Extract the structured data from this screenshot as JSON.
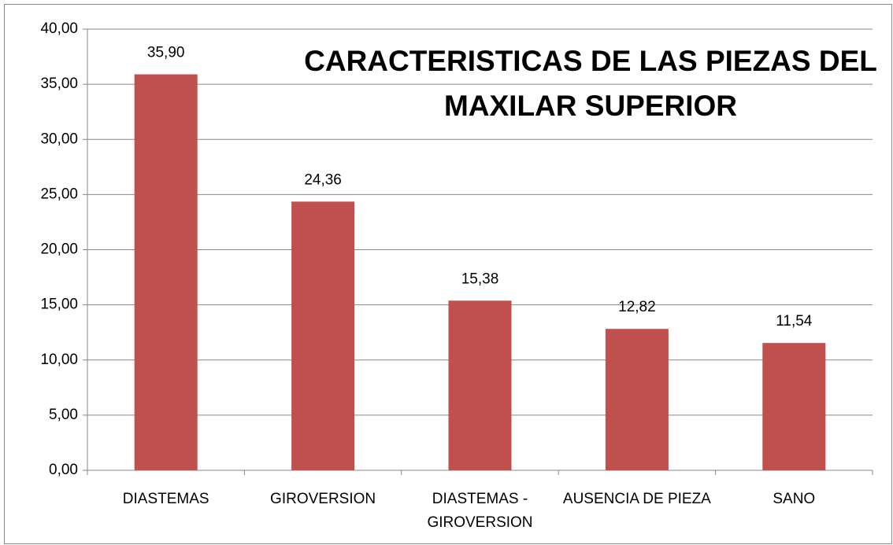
{
  "chart_data": {
    "type": "bar",
    "title": [
      "CARACTERISTICAS DE LAS PIEZAS DEL",
      "MAXILAR SUPERIOR"
    ],
    "categories": [
      "DIASTEMAS",
      "GIROVERSION",
      "DIASTEMAS - GIROVERSION",
      "AUSENCIA DE PIEZA",
      "SANO"
    ],
    "values": [
      35.9,
      24.36,
      15.38,
      12.82,
      11.54
    ],
    "value_labels": [
      "35,90",
      "24,36",
      "15,38",
      "12,82",
      "11,54"
    ],
    "color": "#c0504d",
    "ylim": [
      0,
      40
    ],
    "yticks": [
      {
        "value": 0,
        "label": "0,00"
      },
      {
        "value": 5,
        "label": "5,00"
      },
      {
        "value": 10,
        "label": "10,00"
      },
      {
        "value": 15,
        "label": "15,00"
      },
      {
        "value": 20,
        "label": "20,00"
      },
      {
        "value": 25,
        "label": "25,00"
      },
      {
        "value": 30,
        "label": "30,00"
      },
      {
        "value": 35,
        "label": "35,00"
      },
      {
        "value": 40,
        "label": "40,00"
      }
    ],
    "grid": true
  }
}
